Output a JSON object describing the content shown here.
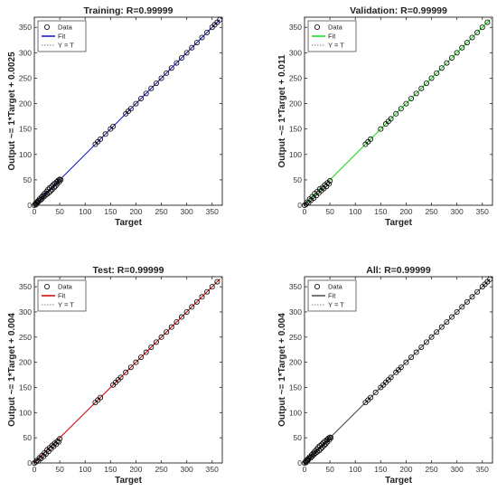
{
  "chart_data": [
    {
      "type": "scatter",
      "title": "Training: R=0.99999",
      "xlabel": "Target",
      "ylabel": "Output ~= 1*Target + 0.0025",
      "xlim": [
        0,
        370
      ],
      "ylim": [
        0,
        370
      ],
      "xticks": [
        "0",
        "50",
        "100",
        "150",
        "200",
        "250",
        "300",
        "350"
      ],
      "yticks": [
        "0",
        "50",
        "100",
        "150",
        "200",
        "250",
        "300",
        "350"
      ],
      "fit_color": "#1f1fbf",
      "fit": {
        "slope": 1,
        "intercept": 0.0025
      },
      "legend": {
        "entries": [
          "Data",
          "Fit",
          "Y = T"
        ],
        "placement": "top-left"
      },
      "series": [
        {
          "name": "Data",
          "x": [
            0,
            2,
            3,
            4,
            5,
            6,
            7,
            8,
            10,
            12,
            14,
            15,
            17,
            19,
            20,
            22,
            24,
            25,
            27,
            29,
            30,
            32,
            34,
            35,
            37,
            39,
            40,
            42,
            44,
            45,
            47,
            49,
            50,
            52,
            120,
            125,
            130,
            140,
            150,
            155,
            180,
            185,
            190,
            200,
            210,
            220,
            230,
            240,
            250,
            260,
            270,
            280,
            290,
            300,
            310,
            320,
            330,
            340,
            350,
            355,
            360,
            365
          ],
          "y": [
            0,
            3,
            1,
            5,
            4,
            7,
            6,
            9,
            12,
            10,
            16,
            13,
            19,
            17,
            23,
            20,
            27,
            22,
            31,
            25,
            34,
            28,
            37,
            31,
            40,
            35,
            43,
            38,
            46,
            42,
            49,
            46,
            51,
            50,
            120,
            125,
            130,
            140,
            150,
            155,
            180,
            185,
            190,
            200,
            210,
            220,
            230,
            240,
            250,
            260,
            270,
            280,
            290,
            300,
            310,
            320,
            330,
            340,
            350,
            355,
            360,
            365
          ]
        }
      ]
    },
    {
      "type": "scatter",
      "title": "Validation: R=0.99999",
      "xlabel": "Target",
      "ylabel": "Output ~= 1*Target + 0.011",
      "xlim": [
        0,
        370
      ],
      "ylim": [
        0,
        370
      ],
      "xticks": [
        "0",
        "50",
        "100",
        "150",
        "200",
        "250",
        "300",
        "350"
      ],
      "yticks": [
        "0",
        "50",
        "100",
        "150",
        "200",
        "250",
        "300",
        "350"
      ],
      "fit_color": "#22dd22",
      "fit": {
        "slope": 1,
        "intercept": 0.011
      },
      "legend": {
        "entries": [
          "Data",
          "Fit",
          "Y = T"
        ],
        "placement": "top-left"
      },
      "series": [
        {
          "name": "Data",
          "x": [
            0,
            3,
            5,
            8,
            10,
            13,
            15,
            18,
            20,
            23,
            25,
            28,
            30,
            33,
            35,
            38,
            40,
            43,
            45,
            48,
            50,
            120,
            125,
            130,
            150,
            160,
            165,
            170,
            180,
            190,
            200,
            210,
            220,
            230,
            240,
            250,
            260,
            270,
            280,
            290,
            300,
            310,
            320,
            330,
            340,
            350,
            360
          ],
          "y": [
            0,
            2,
            6,
            5,
            12,
            10,
            17,
            14,
            23,
            19,
            27,
            24,
            32,
            29,
            35,
            33,
            40,
            37,
            44,
            42,
            48,
            120,
            125,
            130,
            150,
            160,
            165,
            170,
            180,
            190,
            200,
            210,
            220,
            230,
            240,
            250,
            260,
            270,
            280,
            290,
            300,
            310,
            320,
            330,
            340,
            350,
            360
          ]
        }
      ]
    },
    {
      "type": "scatter",
      "title": "Test: R=0.99999",
      "xlabel": "Target",
      "ylabel": "Output ~= 1*Target + 0.004",
      "xlim": [
        0,
        370
      ],
      "ylim": [
        0,
        370
      ],
      "xticks": [
        "0",
        "50",
        "100",
        "150",
        "200",
        "250",
        "300",
        "350"
      ],
      "yticks": [
        "0",
        "50",
        "100",
        "150",
        "200",
        "250",
        "300",
        "350"
      ],
      "fit_color": "#cc1111",
      "fit": {
        "slope": 1,
        "intercept": 0.004
      },
      "legend": {
        "entries": [
          "Data",
          "Fit",
          "Y = T"
        ],
        "placement": "top-left"
      },
      "series": [
        {
          "name": "Data",
          "x": [
            0,
            3,
            5,
            8,
            10,
            13,
            15,
            18,
            20,
            23,
            25,
            28,
            30,
            33,
            35,
            38,
            40,
            43,
            45,
            48,
            50,
            120,
            125,
            130,
            155,
            160,
            165,
            170,
            180,
            190,
            200,
            210,
            220,
            230,
            240,
            250,
            260,
            270,
            280,
            290,
            300,
            310,
            320,
            330,
            340,
            350,
            360
          ],
          "y": [
            0,
            2,
            5,
            4,
            10,
            9,
            15,
            13,
            20,
            18,
            26,
            23,
            30,
            28,
            35,
            33,
            39,
            37,
            43,
            42,
            48,
            120,
            125,
            130,
            155,
            160,
            165,
            170,
            180,
            190,
            200,
            210,
            220,
            230,
            240,
            250,
            260,
            270,
            280,
            290,
            300,
            310,
            320,
            330,
            340,
            350,
            360
          ]
        }
      ]
    },
    {
      "type": "scatter",
      "title": "All: R=0.99999",
      "xlabel": "Target",
      "ylabel": "Output ~= 1*Target + 0.004",
      "xlim": [
        0,
        370
      ],
      "ylim": [
        0,
        370
      ],
      "xticks": [
        "0",
        "50",
        "100",
        "150",
        "200",
        "250",
        "300",
        "350"
      ],
      "yticks": [
        "0",
        "50",
        "100",
        "150",
        "200",
        "250",
        "300",
        "350"
      ],
      "fit_color": "#555555",
      "fit": {
        "slope": 1,
        "intercept": 0.004
      },
      "legend": {
        "entries": [
          "Data",
          "Fit",
          "Y = T"
        ],
        "placement": "top-left"
      },
      "series": [
        {
          "name": "Data",
          "x": [
            0,
            2,
            3,
            4,
            5,
            6,
            7,
            8,
            10,
            12,
            14,
            15,
            17,
            19,
            20,
            22,
            24,
            25,
            27,
            29,
            30,
            32,
            34,
            35,
            37,
            39,
            40,
            42,
            44,
            45,
            47,
            49,
            50,
            52,
            120,
            125,
            130,
            140,
            150,
            155,
            160,
            165,
            170,
            180,
            185,
            190,
            200,
            210,
            220,
            230,
            240,
            250,
            260,
            270,
            280,
            290,
            300,
            310,
            320,
            330,
            340,
            350,
            355,
            360,
            365
          ],
          "y": [
            0,
            3,
            1,
            5,
            4,
            7,
            6,
            9,
            12,
            10,
            16,
            13,
            19,
            17,
            23,
            20,
            27,
            22,
            31,
            25,
            34,
            28,
            37,
            31,
            40,
            35,
            43,
            38,
            46,
            42,
            49,
            46,
            51,
            50,
            120,
            125,
            130,
            140,
            150,
            155,
            160,
            165,
            170,
            180,
            185,
            190,
            200,
            210,
            220,
            230,
            240,
            250,
            260,
            270,
            280,
            290,
            300,
            310,
            320,
            330,
            340,
            350,
            355,
            360,
            365
          ]
        }
      ]
    }
  ]
}
